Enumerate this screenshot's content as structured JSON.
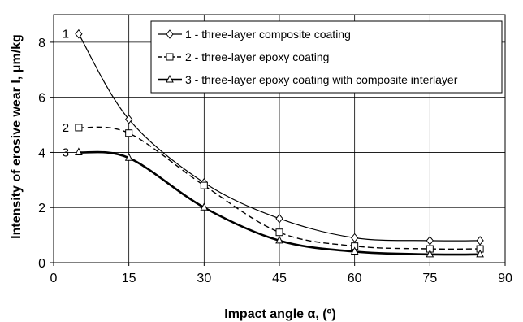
{
  "chart_data": {
    "type": "line",
    "title": "",
    "xlabel": "Impact angle α, (º)",
    "ylabel": "Intensity of erosive wear I, μm/kg",
    "xlim": [
      0,
      90
    ],
    "ylim": [
      0,
      9
    ],
    "xticks": [
      "0",
      "15",
      "30",
      "45",
      "60",
      "75",
      "90"
    ],
    "yticks": [
      "0",
      "2",
      "4",
      "6",
      "8"
    ],
    "grid": true,
    "legend_position": "top-right",
    "series": [
      {
        "name": "1 - three-layer composite coating",
        "label": "1",
        "marker": "diamond",
        "line_style": "solid-thin",
        "x": [
          5,
          15,
          30,
          45,
          60,
          75,
          85
        ],
        "y": [
          8.3,
          5.2,
          2.9,
          1.6,
          0.9,
          0.8,
          0.8
        ]
      },
      {
        "name": "2 - three-layer epoxy coating",
        "label": "2",
        "marker": "square",
        "line_style": "dashed",
        "x": [
          5,
          15,
          30,
          45,
          60,
          75,
          85
        ],
        "y": [
          4.9,
          4.7,
          2.8,
          1.1,
          0.6,
          0.5,
          0.5
        ]
      },
      {
        "name": "3 - three-layer epoxy coating with composite interlayer",
        "label": "3",
        "marker": "triangle",
        "line_style": "solid-thick",
        "x": [
          5,
          15,
          30,
          45,
          60,
          75,
          85
        ],
        "y": [
          4.0,
          3.8,
          2.0,
          0.8,
          0.4,
          0.3,
          0.3
        ]
      }
    ]
  }
}
